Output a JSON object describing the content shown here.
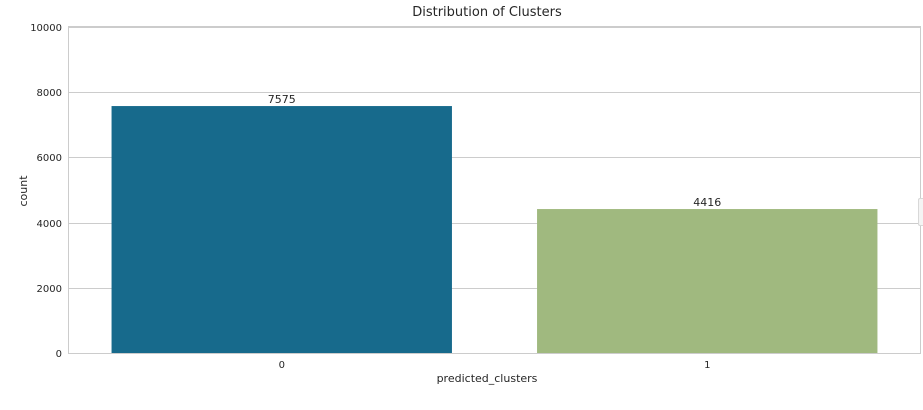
{
  "chart_data": {
    "type": "bar",
    "title": "Distribution of Clusters",
    "xlabel": "predicted_clusters",
    "ylabel": "count",
    "categories": [
      "0",
      "1"
    ],
    "values": [
      7575,
      4416
    ],
    "data_labels": [
      "7575",
      "4416"
    ],
    "ylim": [
      0,
      10000
    ],
    "yticks": [
      0,
      2000,
      4000,
      6000,
      8000,
      10000
    ],
    "ytick_labels": [
      "0",
      "2000",
      "4000",
      "6000",
      "8000",
      "10000"
    ],
    "colors": [
      "#176a8c",
      "#a0b97f"
    ],
    "grid": true,
    "legend": "none"
  }
}
